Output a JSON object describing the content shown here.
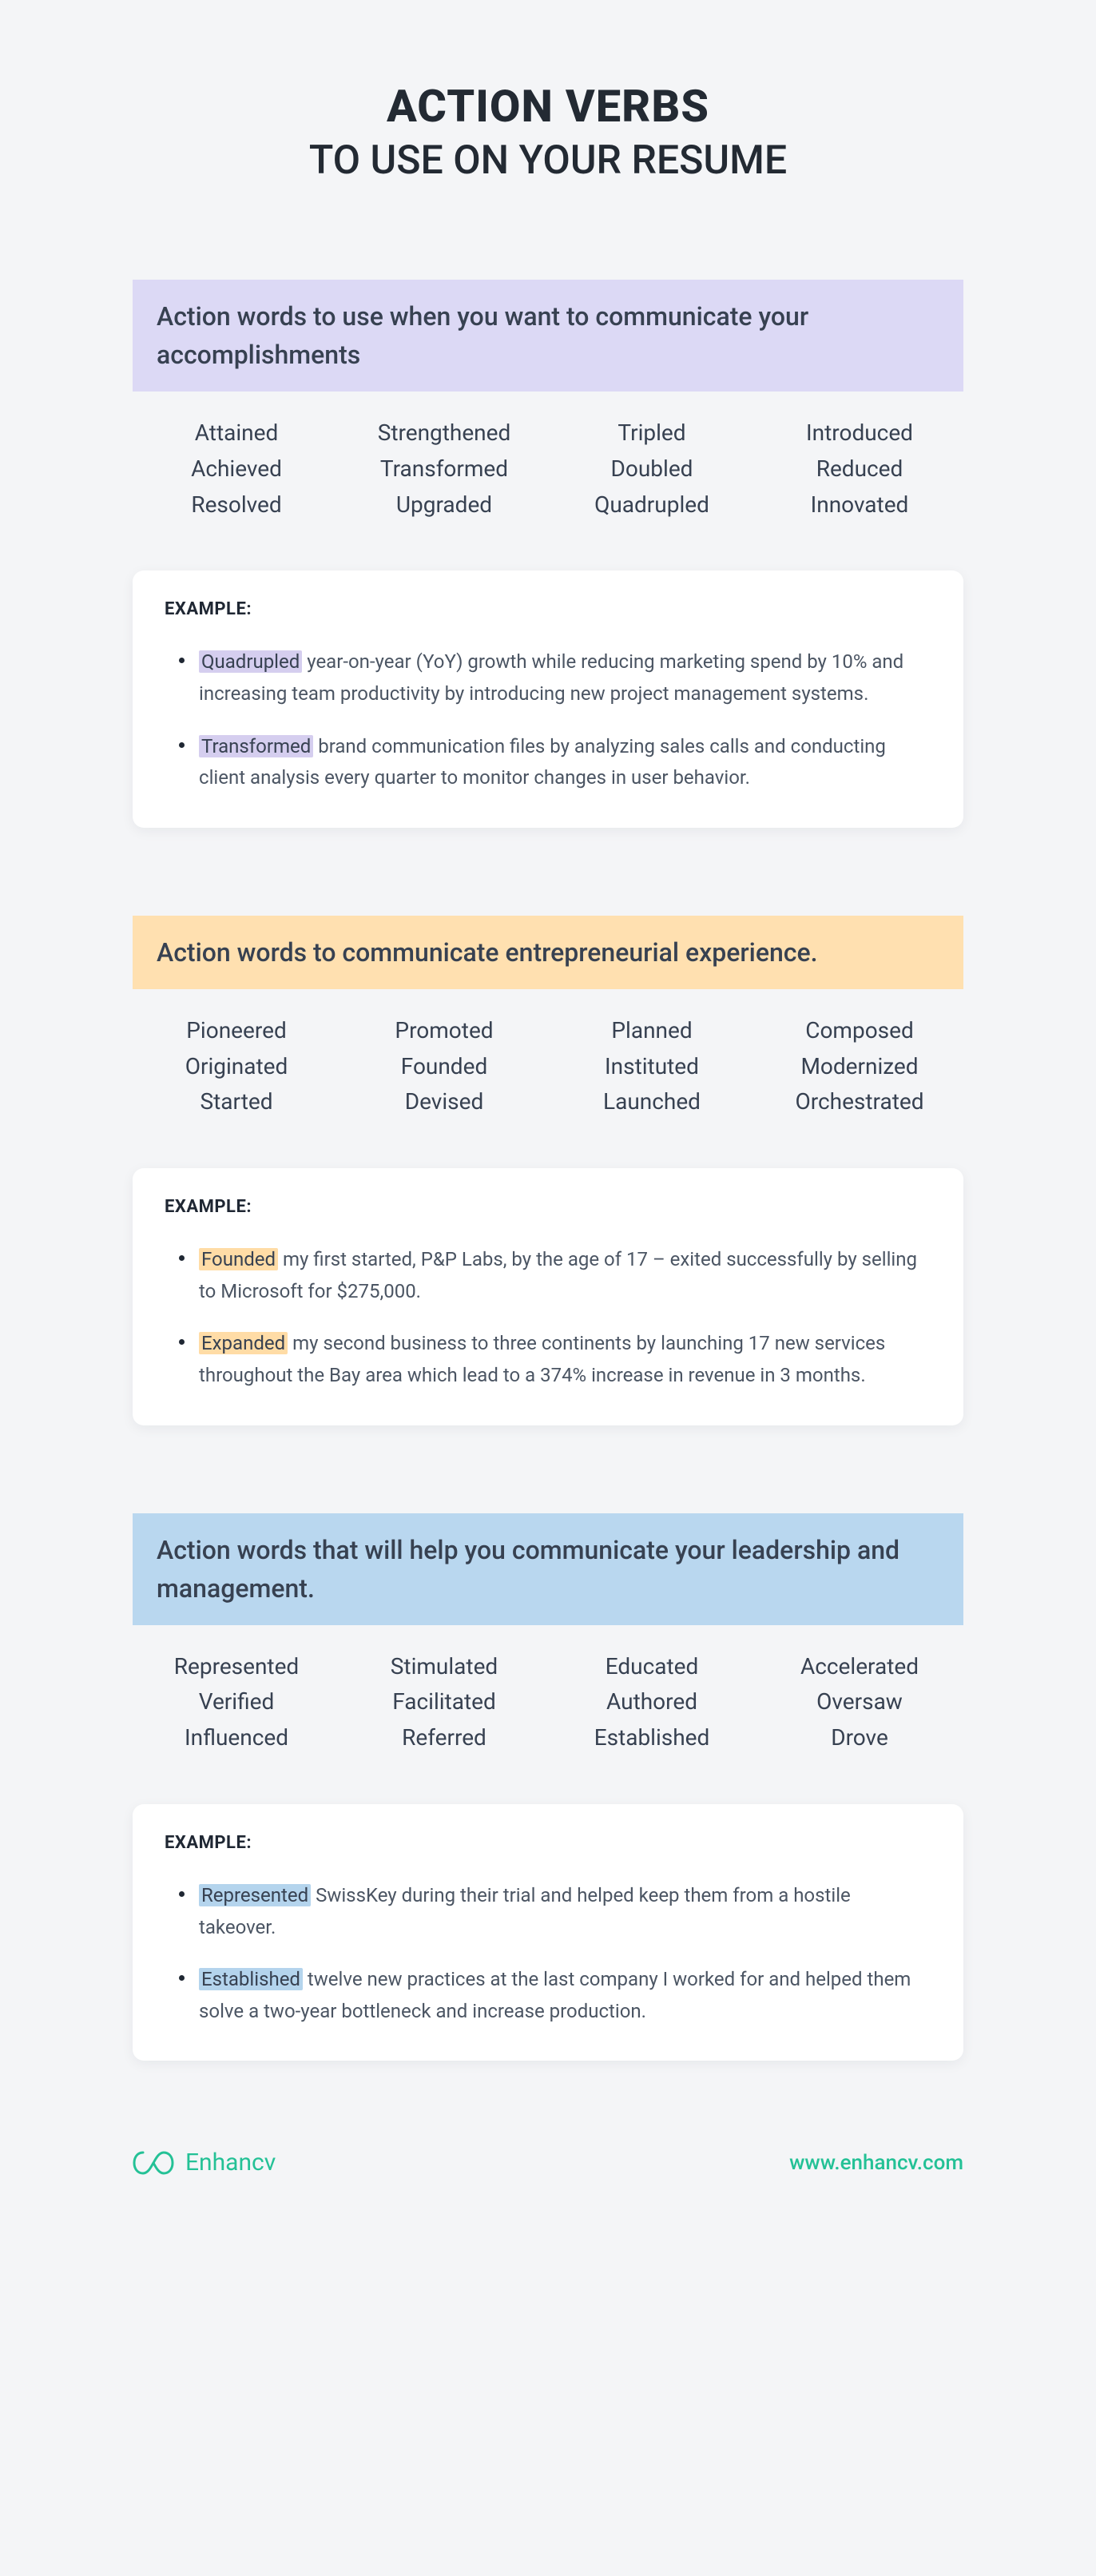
{
  "title_line1": "ACTION VERBS",
  "title_line2": "TO USE ON YOUR RESUME",
  "colors": {
    "background": "#f4f5f7",
    "card_bg": "#ffffff",
    "text_dark": "#232a33",
    "text_body": "#4b5563",
    "brand_green": "#24c196"
  },
  "sections": [
    {
      "header": "Action words to use when you want to communicate your accomplishments",
      "header_bg": "#dcd9f5",
      "highlight_bg": "#d5ceef",
      "columns": [
        [
          "Attained",
          "Achieved",
          "Resolved"
        ],
        [
          "Strengthened",
          "Transformed",
          "Upgraded"
        ],
        [
          "Tripled",
          "Doubled",
          "Quadrupled"
        ],
        [
          "Introduced",
          "Reduced",
          "Innovated"
        ]
      ],
      "example_label": "EXAMPLE:",
      "examples": [
        {
          "highlight": "Quadrupled",
          "rest": " year-on-year (YoY) growth while reducing marketing spend by 10% and increasing team productivity by introducing new project management systems."
        },
        {
          "highlight": "Transformed",
          "rest": " brand communication files by analyzing sales calls and conducting client analysis every quarter to monitor changes in user behavior."
        }
      ]
    },
    {
      "header": "Action words to communicate entrepreneurial experience.",
      "header_bg": "#ffe0b0",
      "highlight_bg": "#ffdca6",
      "columns": [
        [
          "Pioneered",
          "Originated",
          "Started"
        ],
        [
          "Promoted",
          "Founded",
          "Devised"
        ],
        [
          "Planned",
          "Instituted",
          "Launched"
        ],
        [
          "Composed",
          "Modernized",
          "Orchestrated"
        ]
      ],
      "example_label": "EXAMPLE:",
      "examples": [
        {
          "highlight": "Founded",
          "rest": " my first started, P&P Labs, by the age of 17 – exited successfully by selling to Microsoft for $275,000."
        },
        {
          "highlight": "Expanded",
          "rest": " my second business to three continents by launching 17 new services throughout the Bay area which lead to a 374% increase in revenue in 3 months."
        }
      ]
    },
    {
      "header": "Action words that will help you communicate your leadership and management.",
      "header_bg": "#b9d7ef",
      "highlight_bg": "#b4d4ed",
      "columns": [
        [
          "Represented",
          "Verified",
          "Influenced"
        ],
        [
          "Stimulated",
          "Facilitated",
          "Referred"
        ],
        [
          "Educated",
          "Authored",
          "Established"
        ],
        [
          "Accelerated",
          "Oversaw",
          "Drove"
        ]
      ],
      "example_label": "EXAMPLE:",
      "examples": [
        {
          "highlight": "Represented",
          "rest": " SwissKey during their trial and helped keep them from a hostile takeover."
        },
        {
          "highlight": "Established",
          "rest": " twelve new practices at the last company I worked for and helped them solve a two-year bottleneck and increase production."
        }
      ]
    }
  ],
  "footer": {
    "brand_name": "Enhancv",
    "url": "www.enhancv.com"
  }
}
